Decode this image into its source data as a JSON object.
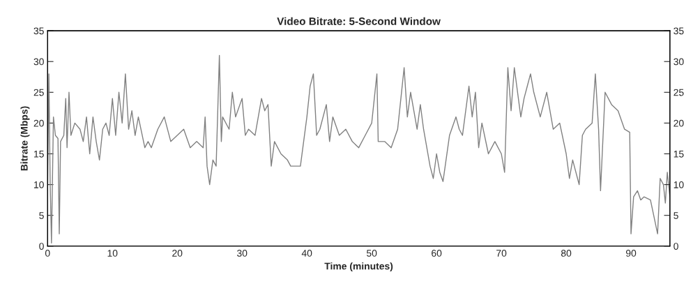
{
  "chart_data": {
    "type": "line",
    "title": "Video Bitrate: 5-Second Window",
    "xlabel": "Time (minutes)",
    "ylabel": "Bitrate (Mbps)",
    "xlim": [
      0,
      96
    ],
    "xticks": [
      0,
      10,
      20,
      30,
      40,
      50,
      60,
      70,
      80,
      90
    ],
    "ylim": [
      0,
      35
    ],
    "yticks": [
      0,
      5,
      10,
      15,
      20,
      25,
      30,
      35
    ],
    "y2lim": [
      0,
      35
    ],
    "y2ticks": [
      0,
      5,
      10,
      15,
      20,
      25,
      30,
      35
    ],
    "grid": false,
    "marker": "none",
    "line_style": "solid",
    "series": [
      {
        "color": "#808080",
        "x": [
          0,
          0.2,
          0.4,
          0.6,
          0.9,
          1.2,
          1.6,
          1.8,
          2.0,
          2.5,
          2.8,
          3.0,
          3.3,
          3.6,
          4.2,
          5,
          5.5,
          6,
          6.5,
          7,
          7.5,
          8,
          8.5,
          9,
          9.5,
          10,
          10.5,
          11,
          11.5,
          12,
          12.5,
          13,
          13.5,
          14,
          15,
          15.5,
          16,
          17,
          18,
          19,
          20,
          21,
          22,
          23,
          24,
          24.3,
          24.6,
          25,
          25.5,
          26,
          26.5,
          26.8,
          27,
          28,
          28.5,
          29,
          30,
          30.5,
          31,
          32,
          33,
          33.5,
          34,
          34.5,
          35,
          36,
          37,
          37.5,
          38,
          39,
          39.5,
          40,
          40.5,
          41,
          41.5,
          42,
          43,
          43.5,
          44,
          45,
          46,
          47,
          48,
          49,
          50,
          50.8,
          51,
          52,
          53,
          54,
          54.5,
          55,
          55.5,
          56,
          57,
          57.5,
          58,
          59,
          59.5,
          60,
          60.5,
          61,
          62,
          63,
          63.5,
          64,
          65,
          65.5,
          66,
          66.5,
          67,
          68,
          69,
          70,
          70.5,
          71,
          71.5,
          72,
          73,
          73.5,
          74,
          74.5,
          75,
          76,
          77,
          78,
          79,
          80,
          80.5,
          81,
          82,
          82.5,
          83,
          84,
          84.5,
          85,
          85.3,
          86,
          87,
          88,
          89,
          89.8,
          90,
          90.4,
          91,
          91.5,
          92,
          93,
          94.1,
          94.5,
          95,
          95.3,
          95.6,
          96
        ],
        "values": [
          9,
          28,
          10,
          0.5,
          21,
          18,
          17.5,
          2,
          17,
          18,
          24,
          16,
          25,
          18,
          20,
          19,
          17,
          21,
          15,
          21,
          17,
          14,
          19,
          20,
          18,
          24,
          18,
          25,
          20,
          28,
          19,
          22,
          18,
          21,
          16,
          17,
          16,
          19,
          21,
          17,
          18,
          19,
          16,
          17,
          16,
          21,
          13,
          10,
          14,
          13,
          31,
          17,
          21,
          19,
          25,
          21,
          24,
          18,
          19,
          18,
          24,
          22,
          23,
          13,
          17,
          15,
          14,
          13,
          13,
          13,
          17,
          21,
          26,
          28,
          18,
          19,
          23,
          17,
          21,
          18,
          19,
          17,
          16,
          18,
          20,
          28,
          17,
          17,
          16,
          19,
          24,
          29,
          21,
          25,
          19,
          23,
          19,
          13,
          11,
          15,
          12,
          10.5,
          18,
          21,
          19,
          18,
          26,
          21,
          25,
          16,
          20,
          15,
          17,
          15,
          12,
          29,
          22,
          29,
          21,
          24,
          26,
          28,
          25,
          21,
          25,
          19,
          20,
          15,
          11,
          14,
          10,
          18,
          19,
          20,
          28,
          19,
          9,
          25,
          23,
          22,
          19,
          18.5,
          2,
          8,
          9,
          7.5,
          8,
          7.5,
          2,
          11,
          10,
          7,
          12,
          8
        ]
      }
    ]
  }
}
